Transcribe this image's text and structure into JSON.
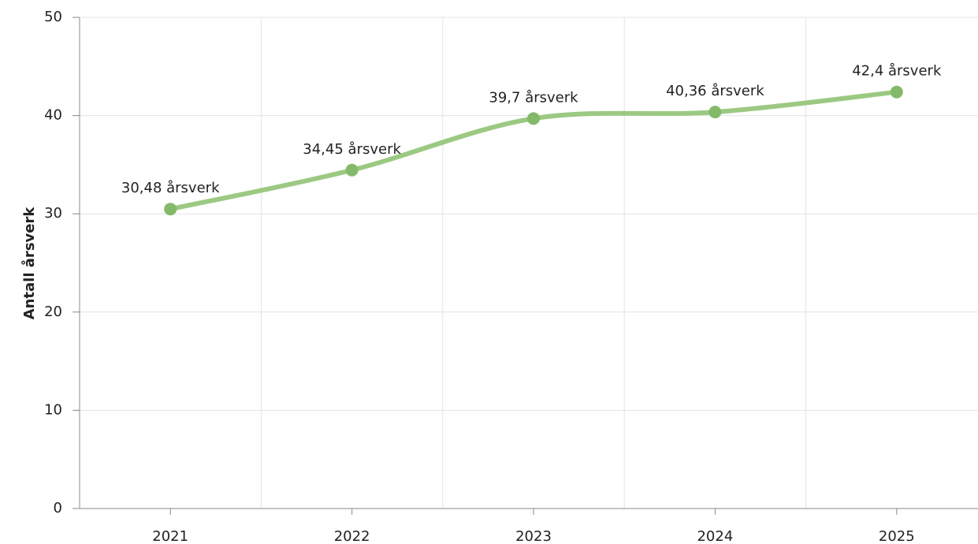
{
  "chart_data": {
    "type": "line",
    "y_label": "Antall årsverk",
    "categories": [
      "2021",
      "2022",
      "2023",
      "2024",
      "2025"
    ],
    "series": [
      {
        "name": "Antall årsverk",
        "color": "#9cc982",
        "marker_color": "#84b96a",
        "values": [
          30.48,
          34.45,
          39.7,
          40.36,
          42.4
        ],
        "value_labels": [
          "30,48 årsverk",
          "34,45 årsverk",
          "39,7 årsverk",
          "40,36 årsverk",
          "42,4 årsverk"
        ]
      }
    ],
    "ylim": [
      0,
      50
    ],
    "yticks": [
      0,
      10,
      20,
      30,
      40,
      50
    ],
    "grid": true,
    "smooth": true
  }
}
